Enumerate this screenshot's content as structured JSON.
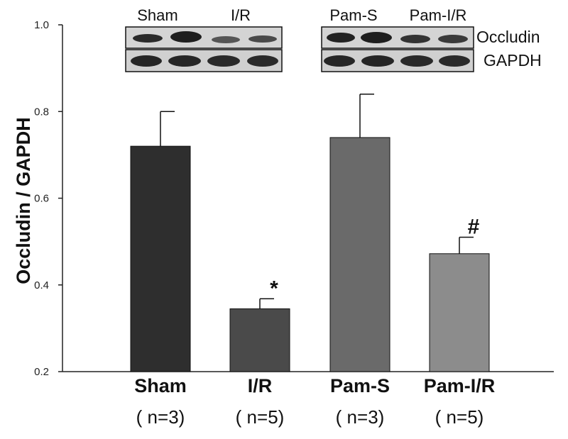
{
  "chart_data": {
    "type": "bar",
    "ylabel": "Occludin / GAPDH",
    "ylim": [
      0.2,
      1.0
    ],
    "yticks": [
      "0.2",
      "0.4",
      "0.6",
      "0.8",
      "1.0"
    ],
    "categories": [
      "Sham",
      "I/R",
      "Pam-S",
      "Pam-I/R"
    ],
    "n_labels": [
      "( n=3)",
      "( n=5)",
      "( n=3)",
      "( n=5)"
    ],
    "values": [
      0.72,
      0.345,
      0.74,
      0.472
    ],
    "errors": [
      0.08,
      0.023,
      0.1,
      0.038
    ],
    "bar_colors": [
      "#2e2e2e",
      "#4a4a4a",
      "#6a6a6a",
      "#8c8c8c"
    ],
    "significance": [
      "",
      "*",
      "",
      "#"
    ],
    "grid": false
  },
  "blot": {
    "lane_labels_left": [
      "Sham",
      "I/R"
    ],
    "lane_labels_right": [
      "Pam-S",
      "Pam-I/R"
    ],
    "proteins": [
      "Occludin",
      "GAPDH"
    ]
  }
}
